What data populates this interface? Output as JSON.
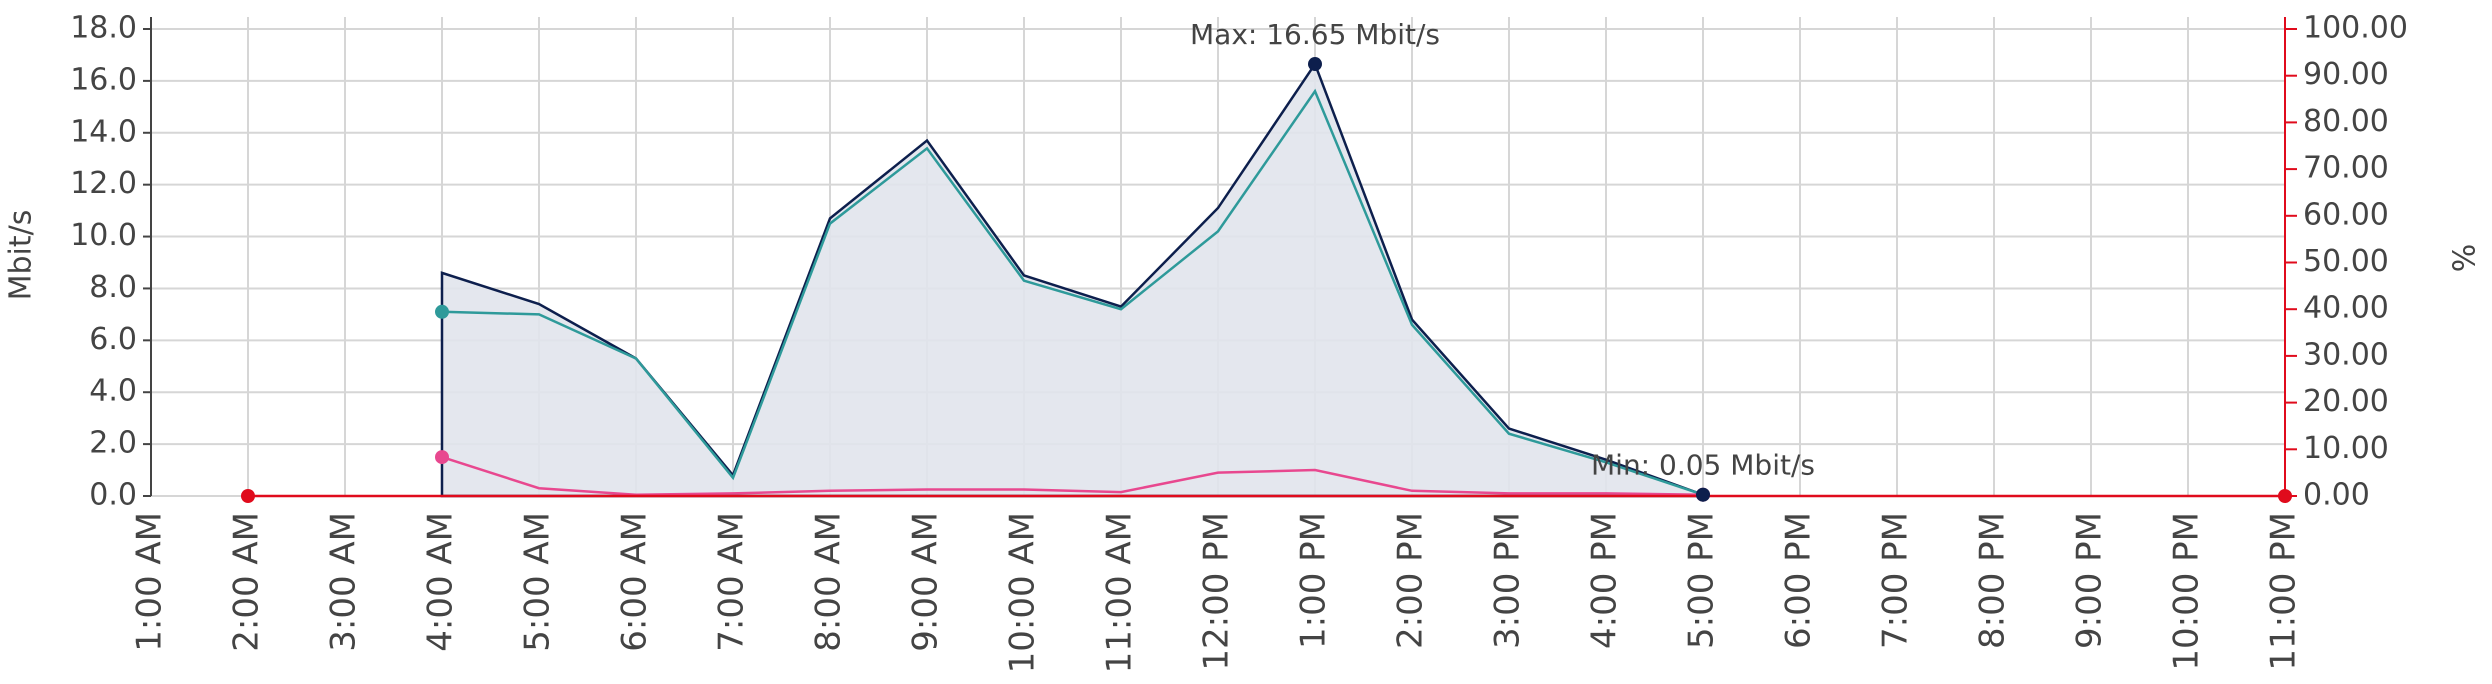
{
  "chart_data": {
    "type": "line",
    "ylabel": "Mbit/s",
    "y2label": "%",
    "categories": [
      "1:00 AM",
      "2:00 AM",
      "3:00 AM",
      "4:00 AM",
      "5:00 AM",
      "6:00 AM",
      "7:00 AM",
      "8:00 AM",
      "9:00 AM",
      "10:00 AM",
      "11:00 AM",
      "12:00 PM",
      "1:00 PM",
      "2:00 PM",
      "3:00 PM",
      "4:00 PM",
      "5:00 PM",
      "6:00 PM",
      "7:00 PM",
      "8:00 PM",
      "9:00 PM",
      "10:00 PM",
      "11:00 PM"
    ],
    "ylim": [
      0,
      18
    ],
    "yticks": [
      {
        "value": 0,
        "label": "0.0"
      },
      {
        "value": 2,
        "label": "2.0"
      },
      {
        "value": 4,
        "label": "4.0"
      },
      {
        "value": 6,
        "label": "6.0"
      },
      {
        "value": 8,
        "label": "8.0"
      },
      {
        "value": 10,
        "label": "10.0"
      },
      {
        "value": 12,
        "label": "12.0"
      },
      {
        "value": 14,
        "label": "14.0"
      },
      {
        "value": 16,
        "label": "16.0"
      },
      {
        "value": 18,
        "label": "18.0"
      }
    ],
    "y2lim": [
      0,
      100
    ],
    "y2ticks": [
      {
        "value": 0,
        "label": "0.00"
      },
      {
        "value": 10,
        "label": "10.00"
      },
      {
        "value": 20,
        "label": "20.00"
      },
      {
        "value": 30,
        "label": "30.00"
      },
      {
        "value": 40,
        "label": "40.00"
      },
      {
        "value": 50,
        "label": "50.00"
      },
      {
        "value": 60,
        "label": "60.00"
      },
      {
        "value": 70,
        "label": "70.00"
      },
      {
        "value": 80,
        "label": "80.00"
      },
      {
        "value": 90,
        "label": "90.00"
      },
      {
        "value": 100,
        "label": "100.00"
      }
    ],
    "y2_color": "#e00b1c",
    "grid": true,
    "series": [
      {
        "color": "#0d1f4d",
        "fill": "#e1e4ec",
        "values": [
          null,
          null,
          null,
          8.6,
          7.4,
          5.3,
          0.8,
          10.7,
          13.7,
          8.5,
          7.3,
          11.1,
          16.65,
          6.8,
          2.6,
          1.4,
          0.05,
          null,
          null,
          null,
          null,
          null,
          null
        ]
      },
      {
        "color": "#2e9a9a",
        "values": [
          null,
          null,
          null,
          7.1,
          7.0,
          5.3,
          0.7,
          10.5,
          13.4,
          8.3,
          7.2,
          10.2,
          15.6,
          6.6,
          2.4,
          1.3,
          0.05,
          null,
          null,
          null,
          null,
          null,
          null
        ]
      },
      {
        "color": "#e8488f",
        "values": [
          null,
          null,
          null,
          1.5,
          0.3,
          0.05,
          0.1,
          0.2,
          0.25,
          0.25,
          0.15,
          0.9,
          1.0,
          0.2,
          0.1,
          0.1,
          0.05,
          null,
          null,
          null,
          null,
          null,
          null
        ]
      },
      {
        "color": "#e00b1c",
        "axis": "y2",
        "values": [
          null,
          0,
          0,
          0,
          0,
          0,
          0,
          0,
          0,
          0,
          0,
          0,
          0,
          0,
          0,
          0,
          0,
          0,
          0,
          0,
          0,
          0,
          0
        ]
      }
    ],
    "annotations": [
      {
        "text": "Max: 16.65 Mbit/s",
        "x": "1:00 PM",
        "y": 16.65
      },
      {
        "text": "Min: 0.05 Mbit/s",
        "x": "5:00 PM",
        "y": 0.05
      }
    ]
  }
}
